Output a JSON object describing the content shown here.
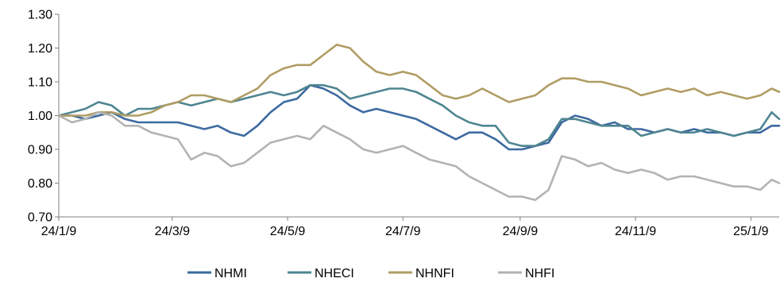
{
  "chart_data": {
    "type": "line",
    "title": "",
    "xlabel": "",
    "ylabel": "",
    "ylim": [
      0.7,
      1.3
    ],
    "yticks": [
      "0.70",
      "0.80",
      "0.90",
      "1.00",
      "1.10",
      "1.20",
      "1.30"
    ],
    "xlim": [
      "2024-01-09",
      "2025-01-24"
    ],
    "xticks": [
      {
        "date": "2024-01-09",
        "label": "24/1/9"
      },
      {
        "date": "2024-03-09",
        "label": "24/3/9"
      },
      {
        "date": "2024-05-09",
        "label": "24/5/9"
      },
      {
        "date": "2024-07-09",
        "label": "24/7/9"
      },
      {
        "date": "2024-09-09",
        "label": "24/9/9"
      },
      {
        "date": "2024-11-09",
        "label": "24/11/9"
      },
      {
        "date": "2025-01-09",
        "label": "25/1/9"
      }
    ],
    "grid": false,
    "legend_position": "bottom",
    "series": [
      {
        "name": "NHMI",
        "color": "#3d6aa0",
        "points": [
          [
            "2024-01-09",
            1.0
          ],
          [
            "2024-01-16",
            1.0
          ],
          [
            "2024-01-23",
            0.99
          ],
          [
            "2024-01-30",
            1.0
          ],
          [
            "2024-02-06",
            1.01
          ],
          [
            "2024-02-13",
            0.99
          ],
          [
            "2024-02-20",
            0.98
          ],
          [
            "2024-02-27",
            0.98
          ],
          [
            "2024-03-05",
            0.98
          ],
          [
            "2024-03-12",
            0.98
          ],
          [
            "2024-03-19",
            0.97
          ],
          [
            "2024-03-26",
            0.96
          ],
          [
            "2024-04-02",
            0.97
          ],
          [
            "2024-04-09",
            0.95
          ],
          [
            "2024-04-16",
            0.94
          ],
          [
            "2024-04-23",
            0.97
          ],
          [
            "2024-04-30",
            1.01
          ],
          [
            "2024-05-07",
            1.04
          ],
          [
            "2024-05-14",
            1.05
          ],
          [
            "2024-05-21",
            1.09
          ],
          [
            "2024-05-28",
            1.08
          ],
          [
            "2024-06-04",
            1.06
          ],
          [
            "2024-06-11",
            1.03
          ],
          [
            "2024-06-18",
            1.01
          ],
          [
            "2024-06-25",
            1.02
          ],
          [
            "2024-07-02",
            1.01
          ],
          [
            "2024-07-09",
            1.0
          ],
          [
            "2024-07-16",
            0.99
          ],
          [
            "2024-07-23",
            0.97
          ],
          [
            "2024-07-30",
            0.95
          ],
          [
            "2024-08-06",
            0.93
          ],
          [
            "2024-08-13",
            0.95
          ],
          [
            "2024-08-20",
            0.95
          ],
          [
            "2024-08-27",
            0.93
          ],
          [
            "2024-09-03",
            0.9
          ],
          [
            "2024-09-10",
            0.9
          ],
          [
            "2024-09-17",
            0.91
          ],
          [
            "2024-09-24",
            0.92
          ],
          [
            "2024-10-01",
            0.98
          ],
          [
            "2024-10-08",
            1.0
          ],
          [
            "2024-10-15",
            0.99
          ],
          [
            "2024-10-22",
            0.97
          ],
          [
            "2024-10-29",
            0.98
          ],
          [
            "2024-11-05",
            0.96
          ],
          [
            "2024-11-12",
            0.96
          ],
          [
            "2024-11-19",
            0.95
          ],
          [
            "2024-11-26",
            0.96
          ],
          [
            "2024-12-03",
            0.95
          ],
          [
            "2024-12-10",
            0.96
          ],
          [
            "2024-12-17",
            0.95
          ],
          [
            "2024-12-24",
            0.95
          ],
          [
            "2024-12-31",
            0.94
          ],
          [
            "2025-01-07",
            0.95
          ],
          [
            "2025-01-14",
            0.95
          ],
          [
            "2025-01-20",
            0.97
          ],
          [
            "2025-01-24",
            0.97
          ]
        ]
      },
      {
        "name": "NHECI",
        "color": "#4e8591",
        "points": [
          [
            "2024-01-09",
            1.0
          ],
          [
            "2024-01-16",
            1.01
          ],
          [
            "2024-01-23",
            1.02
          ],
          [
            "2024-01-30",
            1.04
          ],
          [
            "2024-02-06",
            1.03
          ],
          [
            "2024-02-13",
            1.0
          ],
          [
            "2024-02-20",
            1.02
          ],
          [
            "2024-02-27",
            1.02
          ],
          [
            "2024-03-05",
            1.03
          ],
          [
            "2024-03-12",
            1.04
          ],
          [
            "2024-03-19",
            1.03
          ],
          [
            "2024-03-26",
            1.04
          ],
          [
            "2024-04-02",
            1.05
          ],
          [
            "2024-04-09",
            1.04
          ],
          [
            "2024-04-16",
            1.05
          ],
          [
            "2024-04-23",
            1.06
          ],
          [
            "2024-04-30",
            1.07
          ],
          [
            "2024-05-07",
            1.06
          ],
          [
            "2024-05-14",
            1.07
          ],
          [
            "2024-05-21",
            1.09
          ],
          [
            "2024-05-28",
            1.09
          ],
          [
            "2024-06-04",
            1.08
          ],
          [
            "2024-06-11",
            1.05
          ],
          [
            "2024-06-18",
            1.06
          ],
          [
            "2024-06-25",
            1.07
          ],
          [
            "2024-07-02",
            1.08
          ],
          [
            "2024-07-09",
            1.08
          ],
          [
            "2024-07-16",
            1.07
          ],
          [
            "2024-07-23",
            1.05
          ],
          [
            "2024-07-30",
            1.03
          ],
          [
            "2024-08-06",
            1.0
          ],
          [
            "2024-08-13",
            0.98
          ],
          [
            "2024-08-20",
            0.97
          ],
          [
            "2024-08-27",
            0.97
          ],
          [
            "2024-09-03",
            0.92
          ],
          [
            "2024-09-10",
            0.91
          ],
          [
            "2024-09-17",
            0.91
          ],
          [
            "2024-09-24",
            0.93
          ],
          [
            "2024-10-01",
            0.99
          ],
          [
            "2024-10-08",
            0.99
          ],
          [
            "2024-10-15",
            0.98
          ],
          [
            "2024-10-22",
            0.97
          ],
          [
            "2024-10-29",
            0.97
          ],
          [
            "2024-11-05",
            0.97
          ],
          [
            "2024-11-12",
            0.94
          ],
          [
            "2024-11-19",
            0.95
          ],
          [
            "2024-11-26",
            0.96
          ],
          [
            "2024-12-03",
            0.95
          ],
          [
            "2024-12-10",
            0.95
          ],
          [
            "2024-12-17",
            0.96
          ],
          [
            "2024-12-24",
            0.95
          ],
          [
            "2024-12-31",
            0.94
          ],
          [
            "2025-01-07",
            0.95
          ],
          [
            "2025-01-14",
            0.96
          ],
          [
            "2025-01-20",
            1.01
          ],
          [
            "2025-01-24",
            0.99
          ]
        ]
      },
      {
        "name": "NHNFI",
        "color": "#b09d64",
        "points": [
          [
            "2024-01-09",
            1.0
          ],
          [
            "2024-01-16",
            1.0
          ],
          [
            "2024-01-23",
            1.0
          ],
          [
            "2024-01-30",
            1.01
          ],
          [
            "2024-02-06",
            1.01
          ],
          [
            "2024-02-13",
            1.0
          ],
          [
            "2024-02-20",
            1.0
          ],
          [
            "2024-02-27",
            1.01
          ],
          [
            "2024-03-05",
            1.03
          ],
          [
            "2024-03-12",
            1.04
          ],
          [
            "2024-03-19",
            1.06
          ],
          [
            "2024-03-26",
            1.06
          ],
          [
            "2024-04-02",
            1.05
          ],
          [
            "2024-04-09",
            1.04
          ],
          [
            "2024-04-16",
            1.06
          ],
          [
            "2024-04-23",
            1.08
          ],
          [
            "2024-04-30",
            1.12
          ],
          [
            "2024-05-07",
            1.14
          ],
          [
            "2024-05-14",
            1.15
          ],
          [
            "2024-05-21",
            1.15
          ],
          [
            "2024-05-28",
            1.18
          ],
          [
            "2024-06-04",
            1.21
          ],
          [
            "2024-06-11",
            1.2
          ],
          [
            "2024-06-18",
            1.16
          ],
          [
            "2024-06-25",
            1.13
          ],
          [
            "2024-07-02",
            1.12
          ],
          [
            "2024-07-09",
            1.13
          ],
          [
            "2024-07-16",
            1.12
          ],
          [
            "2024-07-23",
            1.09
          ],
          [
            "2024-07-30",
            1.06
          ],
          [
            "2024-08-06",
            1.05
          ],
          [
            "2024-08-13",
            1.06
          ],
          [
            "2024-08-20",
            1.08
          ],
          [
            "2024-08-27",
            1.06
          ],
          [
            "2024-09-03",
            1.04
          ],
          [
            "2024-09-10",
            1.05
          ],
          [
            "2024-09-17",
            1.06
          ],
          [
            "2024-09-24",
            1.09
          ],
          [
            "2024-10-01",
            1.11
          ],
          [
            "2024-10-08",
            1.11
          ],
          [
            "2024-10-15",
            1.1
          ],
          [
            "2024-10-22",
            1.1
          ],
          [
            "2024-10-29",
            1.09
          ],
          [
            "2024-11-05",
            1.08
          ],
          [
            "2024-11-12",
            1.06
          ],
          [
            "2024-11-19",
            1.07
          ],
          [
            "2024-11-26",
            1.08
          ],
          [
            "2024-12-03",
            1.07
          ],
          [
            "2024-12-10",
            1.08
          ],
          [
            "2024-12-17",
            1.06
          ],
          [
            "2024-12-24",
            1.07
          ],
          [
            "2024-12-31",
            1.06
          ],
          [
            "2025-01-07",
            1.05
          ],
          [
            "2025-01-14",
            1.06
          ],
          [
            "2025-01-20",
            1.08
          ],
          [
            "2025-01-24",
            1.07
          ]
        ]
      },
      {
        "name": "NHFI",
        "color": "#b3b3b3",
        "points": [
          [
            "2024-01-09",
            1.0
          ],
          [
            "2024-01-16",
            0.98
          ],
          [
            "2024-01-23",
            0.99
          ],
          [
            "2024-01-30",
            1.01
          ],
          [
            "2024-02-06",
            1.0
          ],
          [
            "2024-02-13",
            0.97
          ],
          [
            "2024-02-20",
            0.97
          ],
          [
            "2024-02-27",
            0.95
          ],
          [
            "2024-03-05",
            0.94
          ],
          [
            "2024-03-12",
            0.93
          ],
          [
            "2024-03-19",
            0.87
          ],
          [
            "2024-03-26",
            0.89
          ],
          [
            "2024-04-02",
            0.88
          ],
          [
            "2024-04-09",
            0.85
          ],
          [
            "2024-04-16",
            0.86
          ],
          [
            "2024-04-23",
            0.89
          ],
          [
            "2024-04-30",
            0.92
          ],
          [
            "2024-05-07",
            0.93
          ],
          [
            "2024-05-14",
            0.94
          ],
          [
            "2024-05-21",
            0.93
          ],
          [
            "2024-05-28",
            0.97
          ],
          [
            "2024-06-04",
            0.95
          ],
          [
            "2024-06-11",
            0.93
          ],
          [
            "2024-06-18",
            0.9
          ],
          [
            "2024-06-25",
            0.89
          ],
          [
            "2024-07-02",
            0.9
          ],
          [
            "2024-07-09",
            0.91
          ],
          [
            "2024-07-16",
            0.89
          ],
          [
            "2024-07-23",
            0.87
          ],
          [
            "2024-07-30",
            0.86
          ],
          [
            "2024-08-06",
            0.85
          ],
          [
            "2024-08-13",
            0.82
          ],
          [
            "2024-08-20",
            0.8
          ],
          [
            "2024-08-27",
            0.78
          ],
          [
            "2024-09-03",
            0.76
          ],
          [
            "2024-09-10",
            0.76
          ],
          [
            "2024-09-17",
            0.75
          ],
          [
            "2024-09-24",
            0.78
          ],
          [
            "2024-10-01",
            0.88
          ],
          [
            "2024-10-08",
            0.87
          ],
          [
            "2024-10-15",
            0.85
          ],
          [
            "2024-10-22",
            0.86
          ],
          [
            "2024-10-29",
            0.84
          ],
          [
            "2024-11-05",
            0.83
          ],
          [
            "2024-11-12",
            0.84
          ],
          [
            "2024-11-19",
            0.83
          ],
          [
            "2024-11-26",
            0.81
          ],
          [
            "2024-12-03",
            0.82
          ],
          [
            "2024-12-10",
            0.82
          ],
          [
            "2024-12-17",
            0.81
          ],
          [
            "2024-12-24",
            0.8
          ],
          [
            "2024-12-31",
            0.79
          ],
          [
            "2025-01-07",
            0.79
          ],
          [
            "2025-01-14",
            0.78
          ],
          [
            "2025-01-20",
            0.81
          ],
          [
            "2025-01-24",
            0.8
          ]
        ]
      }
    ]
  }
}
